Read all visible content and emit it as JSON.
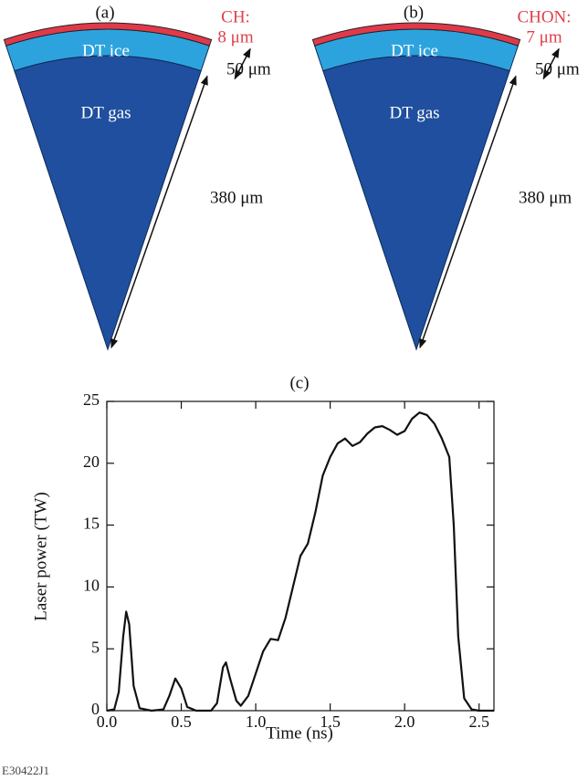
{
  "panels": [
    {
      "label": "(a)",
      "shell": "CH:",
      "shell_thickness": "8 μm",
      "ice": "DT ice",
      "ice_thickness": "50 μm",
      "gas": "DT gas",
      "radius": "380 μm"
    },
    {
      "label": "(b)",
      "shell": "CHON:",
      "shell_thickness": "7 μm",
      "ice": "DT ice",
      "ice_thickness": "50 μm",
      "gas": "DT gas",
      "radius": "380 μm"
    }
  ],
  "chart_data": {
    "type": "line",
    "title": "(c)",
    "x_label": "Time (ns)",
    "y_label": "Laser power (TW)",
    "x": [
      0.0,
      0.05,
      0.08,
      0.11,
      0.13,
      0.15,
      0.18,
      0.22,
      0.3,
      0.38,
      0.42,
      0.46,
      0.5,
      0.54,
      0.6,
      0.7,
      0.74,
      0.78,
      0.8,
      0.83,
      0.87,
      0.9,
      0.95,
      1.0,
      1.05,
      1.1,
      1.15,
      1.2,
      1.25,
      1.3,
      1.35,
      1.4,
      1.45,
      1.5,
      1.55,
      1.6,
      1.65,
      1.7,
      1.75,
      1.8,
      1.85,
      1.9,
      1.95,
      2.0,
      2.05,
      2.1,
      2.15,
      2.2,
      2.25,
      2.3,
      2.33,
      2.36,
      2.4,
      2.45,
      2.5,
      2.6
    ],
    "series": [
      {
        "color": "#111111",
        "values": [
          0,
          0.1,
          1.5,
          6,
          8,
          7,
          2,
          0.2,
          0,
          0.1,
          1.2,
          2.6,
          1.8,
          0.3,
          0,
          0,
          0.6,
          3.5,
          3.9,
          2.5,
          0.8,
          0.4,
          1.2,
          3,
          4.8,
          5.8,
          5.7,
          7.5,
          10,
          12.5,
          13.5,
          16,
          19,
          20.5,
          21.6,
          22,
          21.4,
          21.7,
          22.4,
          22.9,
          23,
          22.7,
          22.3,
          22.6,
          23.6,
          24.1,
          23.9,
          23.2,
          22,
          20.5,
          15,
          6,
          1,
          0.1,
          0,
          0
        ]
      }
    ],
    "xlim": [
      0,
      2.6
    ],
    "ylim": [
      0,
      25
    ],
    "xticks": [
      {
        "value": 0,
        "label": "0.0"
      },
      0.5,
      {
        "value": 1,
        "label": "1.0"
      },
      1.5,
      {
        "value": 2,
        "label": "2.0"
      },
      2.5
    ],
    "yticks": [
      0,
      5,
      10,
      15,
      20,
      25
    ]
  },
  "figure_id": "E30422J1"
}
